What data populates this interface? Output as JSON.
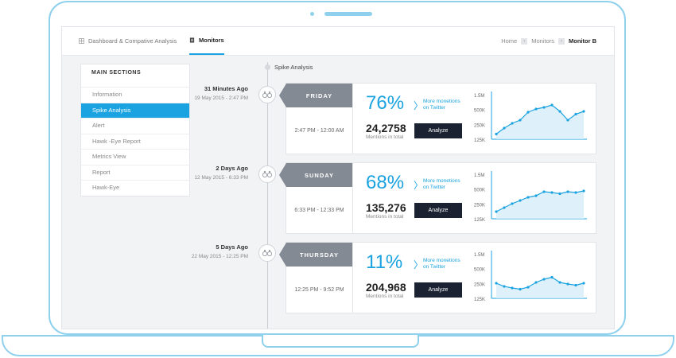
{
  "nav": {
    "tab1": "Dashboard & Compative Analysis",
    "tab2": "Monitors",
    "crumb1": "Home",
    "crumb2": "Monitors",
    "crumb3": "Monitor B",
    "crumb_sep": "›"
  },
  "sidebar": {
    "heading": "MAIN SECTIONS",
    "items": [
      {
        "label": "Information"
      },
      {
        "label": "Spike Analysis"
      },
      {
        "label": "Alert"
      },
      {
        "label": "Hawk -Eye Report"
      },
      {
        "label": "Metrics View"
      },
      {
        "label": "Report"
      },
      {
        "label": "Hawk-Eye"
      }
    ],
    "active_index": 1
  },
  "timeline": {
    "title": "Spike Analysis"
  },
  "colors": {
    "accent": "#1aa3e0",
    "day_label": "#848a93",
    "button": "#1b2333"
  },
  "entries": [
    {
      "ago": "31 Minutes Ago",
      "date": "19 May 2015 - 2:47 PM",
      "day": "FRIDAY",
      "time_range": "2:47 PM - 12:00 AM",
      "percent": "76%",
      "more_line1": "More monetions",
      "more_line2": "on Twitter",
      "count": "24,2758",
      "count_label": "Mentions in total",
      "button": "Analyze",
      "chart_data": {
        "type": "line",
        "y_ticks": [
          "1.5M",
          "500K",
          "250K",
          "125K"
        ],
        "values": [
          0.05,
          0.2,
          0.32,
          0.4,
          0.6,
          0.68,
          0.72,
          0.78,
          0.62,
          0.4,
          0.55,
          0.62
        ]
      }
    },
    {
      "ago": "2 Days Ago",
      "date": "12 May 2015 - 6:33 PM",
      "day": "SUNDAY",
      "time_range": "6:33 PM - 12:33 PM",
      "percent": "68%",
      "more_line1": "More monetions",
      "more_line2": "on Twitter",
      "count": "135,276",
      "count_label": "Mentions in total",
      "button": "Analyze",
      "chart_data": {
        "type": "line",
        "y_ticks": [
          "1.5M",
          "500K",
          "250K",
          "125K"
        ],
        "values": [
          0.1,
          0.2,
          0.3,
          0.38,
          0.46,
          0.5,
          0.6,
          0.58,
          0.55,
          0.6,
          0.58,
          0.62
        ]
      }
    },
    {
      "ago": "5 Days Ago",
      "date": "22 May 2015 - 12:25 PM",
      "day": "THURSDAY",
      "time_range": "12:25 PM - 9:52 PM",
      "percent": "11%",
      "more_line1": "More monetions",
      "more_line2": "on Twitter",
      "count": "204,968",
      "count_label": "Mentions in total",
      "button": "Analyze",
      "chart_data": {
        "type": "line",
        "y_ticks": [
          "1.5M",
          "500K",
          "250K",
          "125K"
        ],
        "values": [
          0.3,
          0.22,
          0.18,
          0.15,
          0.2,
          0.32,
          0.4,
          0.45,
          0.32,
          0.28,
          0.25,
          0.3
        ]
      }
    }
  ]
}
